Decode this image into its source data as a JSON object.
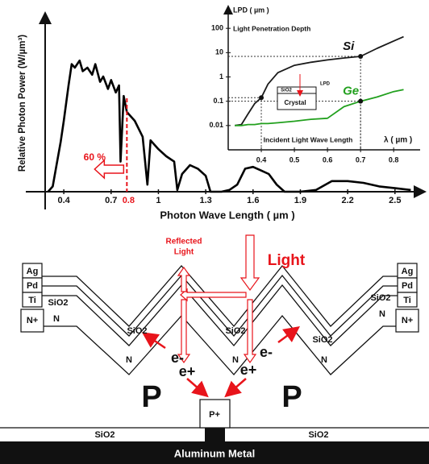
{
  "chart_data": [
    {
      "type": "line",
      "x_label": "Photon Wave Length ( µm )",
      "y_label": "Relative Photon Power (W/µm³)",
      "xlim": [
        0.2,
        2.68
      ],
      "ylim": [
        0,
        100
      ],
      "xticks": [
        0.4,
        0.7,
        1.0,
        1.3,
        1.6,
        1.9,
        2.2,
        2.5
      ],
      "x": [
        0.3,
        0.33,
        0.35,
        0.38,
        0.4,
        0.43,
        0.45,
        0.47,
        0.5,
        0.52,
        0.55,
        0.58,
        0.6,
        0.63,
        0.65,
        0.68,
        0.7,
        0.73,
        0.75,
        0.76,
        0.78,
        0.8,
        0.85,
        0.9,
        0.93,
        0.95,
        1.0,
        1.05,
        1.1,
        1.12,
        1.15,
        1.2,
        1.25,
        1.3,
        1.33,
        1.4,
        1.45,
        1.5,
        1.55,
        1.6,
        1.65,
        1.7,
        1.75,
        1.8,
        1.9,
        2.0,
        2.1,
        2.2,
        2.3,
        2.4,
        2.5,
        2.6
      ],
      "series": [
        {
          "color": "#000000",
          "values": [
            0,
            3,
            13,
            28,
            40,
            60,
            72,
            70,
            74,
            68,
            70,
            66,
            72,
            62,
            65,
            58,
            63,
            56,
            60,
            17,
            54,
            45,
            40,
            31,
            4,
            29,
            24,
            20,
            17,
            1,
            10,
            15,
            13,
            9,
            0,
            0,
            1,
            4,
            13,
            14,
            12,
            10,
            4,
            0,
            0,
            1,
            6,
            6,
            5,
            3,
            2,
            1
          ]
        }
      ],
      "highlight_x": 0.8,
      "highlight_color": "#e8141b",
      "annotation": "60 %"
    },
    {
      "type": "line",
      "y_scale": "log",
      "y_label": "LPD ( µm )",
      "subtitle": "Light Penetration Depth",
      "x_label": "Incident Light Wave Length",
      "x_unit_label": "λ ( µm )",
      "xlim": [
        0.3,
        0.88
      ],
      "ylim": [
        0.001,
        1000
      ],
      "xticks": [
        0.4,
        0.5,
        0.6,
        0.7,
        0.8
      ],
      "yticks": [
        0.01,
        0.1,
        1,
        10,
        100
      ],
      "x": [
        0.32,
        0.34,
        0.36,
        0.38,
        0.4,
        0.42,
        0.45,
        0.5,
        0.55,
        0.6,
        0.65,
        0.7,
        0.75,
        0.8,
        0.83
      ],
      "series": [
        {
          "name": "Si",
          "color": "#1a1a1a",
          "values": [
            0.01,
            0.011,
            0.03,
            0.08,
            0.14,
            0.5,
            1.5,
            3,
            4,
            5,
            6,
            7,
            15,
            30,
            45
          ]
        },
        {
          "name": "Ge",
          "color": "#22a01e",
          "values": [
            0.01,
            0.01,
            0.011,
            0.011,
            0.012,
            0.012,
            0.013,
            0.015,
            0.018,
            0.02,
            0.06,
            0.1,
            0.15,
            0.25,
            0.3
          ]
        }
      ],
      "points": {
        "x": [
          0.4,
          0.7,
          0.7
        ],
        "y": [
          0.14,
          7,
          0.1
        ]
      },
      "inset_labels": [
        "SiO2",
        "Crystal",
        "LPD"
      ]
    }
  ],
  "diagram": {
    "light": "Light",
    "reflected": [
      "Reflected",
      "Light"
    ],
    "left_stack": [
      "Ag",
      "Pd",
      "Ti",
      "SiO2",
      "N+",
      "N"
    ],
    "right_stack": [
      "Ag",
      "Pd",
      "Ti",
      "SiO2",
      "N+",
      "N"
    ],
    "valley_oxide": [
      "SiO2",
      "SiO2",
      "SiO2"
    ],
    "valley_n": [
      "N",
      "N",
      "N"
    ],
    "electrons": [
      "e-",
      "e-"
    ],
    "holes": [
      "e+",
      "e+"
    ],
    "regions": [
      "P",
      "P"
    ],
    "contact": "P+",
    "bottom_oxide": [
      "SiO2",
      "SiO2"
    ],
    "metal": "Aluminum Metal"
  }
}
